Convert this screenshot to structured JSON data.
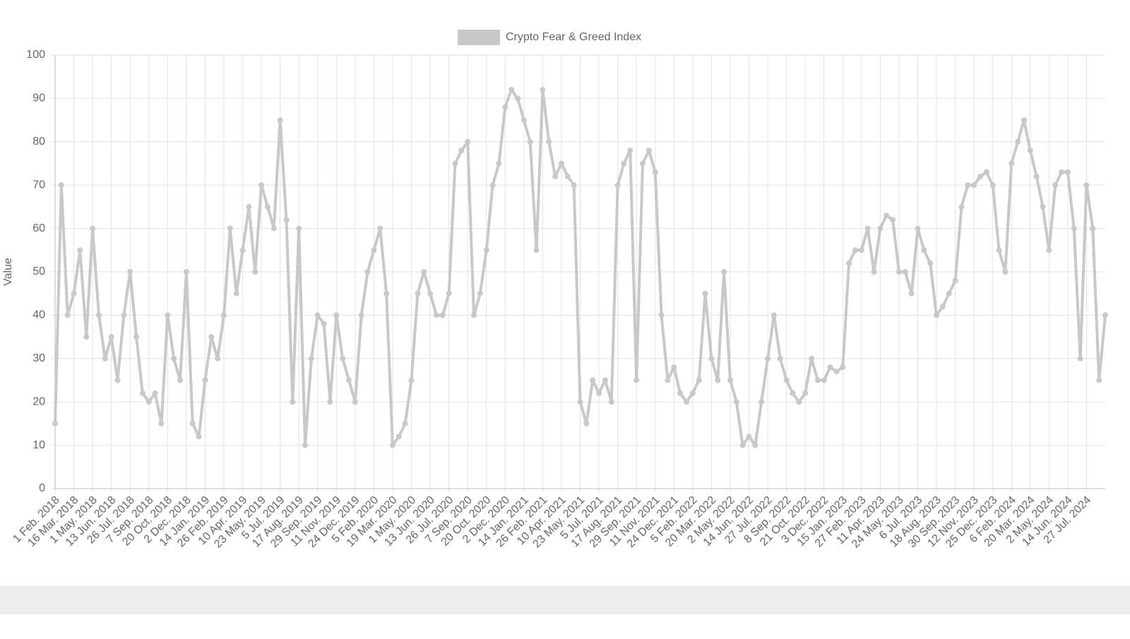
{
  "chart_data": {
    "type": "line",
    "y_label": "Value",
    "categories": [
      "1 Feb. 2018",
      null,
      null,
      "16 Mar. 2018",
      null,
      null,
      "1 May. 2018",
      null,
      null,
      "13 Jun. 2018",
      null,
      null,
      "26 Jul. 2018",
      null,
      null,
      "7 Sep. 2018",
      null,
      null,
      "20 Oct. 2018",
      null,
      null,
      "2 Dec. 2018",
      null,
      null,
      "14 Jan. 2019",
      null,
      null,
      "26 Feb. 2019",
      null,
      null,
      "10 Apr. 2019",
      null,
      null,
      "23 May. 2019",
      null,
      null,
      "5 Jul. 2019",
      null,
      null,
      "17 Aug. 2019",
      null,
      null,
      "29 Sep. 2019",
      null,
      null,
      "11 Nov. 2019",
      null,
      null,
      "24 Dec. 2019",
      null,
      null,
      "5 Feb. 2020",
      null,
      null,
      "19 Mar. 2020",
      null,
      null,
      "1 May. 2020",
      null,
      null,
      "13 Jun. 2020",
      null,
      null,
      "26 Jul. 2020",
      null,
      null,
      "7 Sep. 2020",
      null,
      null,
      "20 Oct. 2020",
      null,
      null,
      "2 Dec. 2020",
      null,
      null,
      "14 Jan. 2021",
      null,
      null,
      "26 Feb. 2021",
      null,
      null,
      "10 Apr. 2021",
      null,
      null,
      "23 May. 2021",
      null,
      null,
      "5 Jul. 2021",
      null,
      null,
      "17 Aug. 2021",
      null,
      null,
      "29 Sep. 2021",
      null,
      null,
      "11 Nov. 2021",
      null,
      null,
      "24 Dec. 2021",
      null,
      null,
      "5 Feb. 2022",
      null,
      null,
      "20 Mar. 2022",
      null,
      null,
      "2 May. 2022",
      null,
      null,
      "14 Jun. 2022",
      null,
      null,
      "27 Jul. 2022",
      null,
      null,
      "8 Sep. 2022",
      null,
      null,
      "21 Oct. 2022",
      null,
      null,
      "3 Dec. 2022",
      null,
      null,
      "15 Jan. 2023",
      null,
      null,
      "27 Feb. 2023",
      null,
      null,
      "11 Apr. 2023",
      null,
      null,
      "24 May. 2023",
      null,
      null,
      "6 Jul. 2023",
      null,
      null,
      "18 Aug. 2023",
      null,
      null,
      "30 Sep. 2023",
      null,
      null,
      "12 Nov. 2023",
      null,
      null,
      "25 Dec. 2023",
      null,
      null,
      "6 Feb. 2024",
      null,
      null,
      "20 Mar. 2024",
      null,
      null,
      "2 May. 2024",
      null,
      null,
      "14 Jun. 2024",
      null,
      null,
      "27 Jul. 2024",
      null,
      null,
      null
    ],
    "series": [
      {
        "name": "Crypto Fear & Greed Index",
        "color": "#c8c8c8",
        "values": [
          15,
          70,
          40,
          45,
          55,
          35,
          60,
          40,
          30,
          35,
          25,
          40,
          50,
          35,
          22,
          20,
          22,
          15,
          40,
          30,
          25,
          50,
          15,
          12,
          25,
          35,
          30,
          40,
          60,
          45,
          55,
          65,
          50,
          70,
          65,
          60,
          85,
          62,
          20,
          60,
          10,
          30,
          40,
          38,
          20,
          40,
          30,
          25,
          20,
          40,
          50,
          55,
          60,
          45,
          10,
          12,
          15,
          25,
          45,
          50,
          45,
          40,
          40,
          45,
          75,
          78,
          80,
          40,
          45,
          55,
          70,
          75,
          88,
          92,
          90,
          85,
          80,
          55,
          92,
          80,
          72,
          75,
          72,
          70,
          20,
          15,
          25,
          22,
          25,
          20,
          70,
          75,
          78,
          25,
          75,
          78,
          73,
          40,
          25,
          28,
          22,
          20,
          22,
          25,
          45,
          30,
          25,
          50,
          25,
          20,
          10,
          12,
          10,
          20,
          30,
          40,
          30,
          25,
          22,
          20,
          22,
          30,
          25,
          25,
          28,
          27,
          28,
          52,
          55,
          55,
          60,
          50,
          60,
          63,
          62,
          50,
          50,
          45,
          60,
          55,
          52,
          40,
          42,
          45,
          48,
          65,
          70,
          70,
          72,
          73,
          70,
          55,
          50,
          75,
          80,
          85,
          78,
          72,
          65,
          55,
          70,
          73,
          73,
          60,
          30,
          70,
          60,
          25,
          40
        ]
      }
    ],
    "ylim": [
      0,
      100
    ],
    "yticks": [
      0,
      10,
      20,
      30,
      40,
      50,
      60,
      70,
      80,
      90,
      100
    ],
    "grid": true
  }
}
